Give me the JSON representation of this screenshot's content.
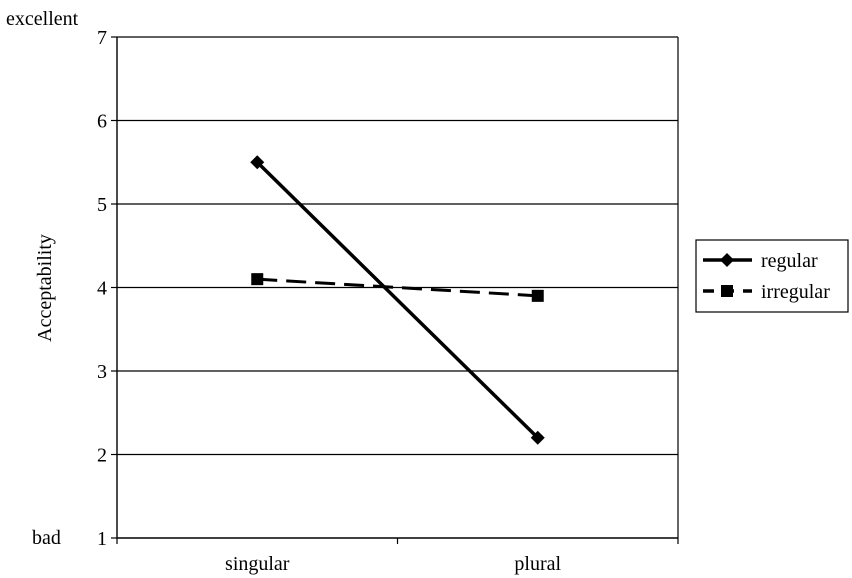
{
  "chart_data": {
    "type": "line",
    "categories": [
      "singular",
      "plural"
    ],
    "ylabel": "Acceptability",
    "xlabel": "",
    "ylim": [
      1,
      7
    ],
    "yticks": [
      1,
      2,
      3,
      4,
      5,
      6,
      7
    ],
    "y_annotations": {
      "top": "excellent",
      "bottom": "bad"
    },
    "grid": true,
    "legend": "right",
    "series": [
      {
        "name": "regular",
        "values": [
          5.5,
          2.2
        ],
        "marker": "diamond",
        "dash": "solid",
        "color": "#000000"
      },
      {
        "name": "irregular",
        "values": [
          4.1,
          3.9
        ],
        "marker": "square",
        "dash": "dashed",
        "color": "#000000"
      }
    ]
  }
}
